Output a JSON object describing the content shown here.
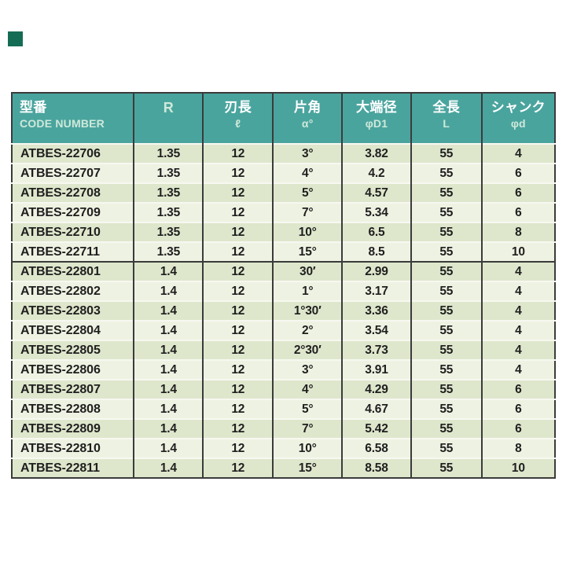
{
  "colors": {
    "teal": "#4aa49e",
    "mint": "#cfe9da",
    "dark": "#3b3b3b",
    "row-a": "#dee7cc",
    "row-b": "#eef2e2",
    "row-line": "#f7f8f1",
    "ink": "#1f1f1f",
    "square": "#156c55",
    "page-bg": "#ffffff"
  },
  "decor": {
    "corner_square": "dark-green-square-mark"
  },
  "table": {
    "header": {
      "columns": [
        {
          "key": "code-number",
          "line1": "型番",
          "line2": "CODE NUMBER"
        },
        {
          "key": "r",
          "line1": "R",
          "line2": ""
        },
        {
          "key": "flute-length",
          "line1": "刃長",
          "line2": "ℓ"
        },
        {
          "key": "half-angle",
          "line1": "片角",
          "line2": "α°"
        },
        {
          "key": "large-end-dia",
          "line1": "大端径",
          "line2": "φD1"
        },
        {
          "key": "overall-length",
          "line1": "全長",
          "line2": "L"
        },
        {
          "key": "shank-dia",
          "line1": "シャンク",
          "line2": "φd"
        }
      ]
    },
    "groups": [
      {
        "rows": [
          [
            "ATBES-22706",
            "1.35",
            "12",
            "3°",
            "3.82",
            "55",
            "4"
          ],
          [
            "ATBES-22707",
            "1.35",
            "12",
            "4°",
            "4.2",
            "55",
            "6"
          ],
          [
            "ATBES-22708",
            "1.35",
            "12",
            "5°",
            "4.57",
            "55",
            "6"
          ],
          [
            "ATBES-22709",
            "1.35",
            "12",
            "7°",
            "5.34",
            "55",
            "6"
          ],
          [
            "ATBES-22710",
            "1.35",
            "12",
            "10°",
            "6.5",
            "55",
            "8"
          ],
          [
            "ATBES-22711",
            "1.35",
            "12",
            "15°",
            "8.5",
            "55",
            "10"
          ]
        ]
      },
      {
        "rows": [
          [
            "ATBES-22801",
            "1.4",
            "12",
            "30′",
            "2.99",
            "55",
            "4"
          ],
          [
            "ATBES-22802",
            "1.4",
            "12",
            "1°",
            "3.17",
            "55",
            "4"
          ],
          [
            "ATBES-22803",
            "1.4",
            "12",
            "1°30′",
            "3.36",
            "55",
            "4"
          ],
          [
            "ATBES-22804",
            "1.4",
            "12",
            "2°",
            "3.54",
            "55",
            "4"
          ],
          [
            "ATBES-22805",
            "1.4",
            "12",
            "2°30′",
            "3.73",
            "55",
            "4"
          ],
          [
            "ATBES-22806",
            "1.4",
            "12",
            "3°",
            "3.91",
            "55",
            "4"
          ],
          [
            "ATBES-22807",
            "1.4",
            "12",
            "4°",
            "4.29",
            "55",
            "6"
          ],
          [
            "ATBES-22808",
            "1.4",
            "12",
            "5°",
            "4.67",
            "55",
            "6"
          ],
          [
            "ATBES-22809",
            "1.4",
            "12",
            "7°",
            "5.42",
            "55",
            "6"
          ],
          [
            "ATBES-22810",
            "1.4",
            "12",
            "10°",
            "6.58",
            "55",
            "8"
          ],
          [
            "ATBES-22811",
            "1.4",
            "12",
            "15°",
            "8.58",
            "55",
            "10"
          ]
        ]
      }
    ]
  }
}
